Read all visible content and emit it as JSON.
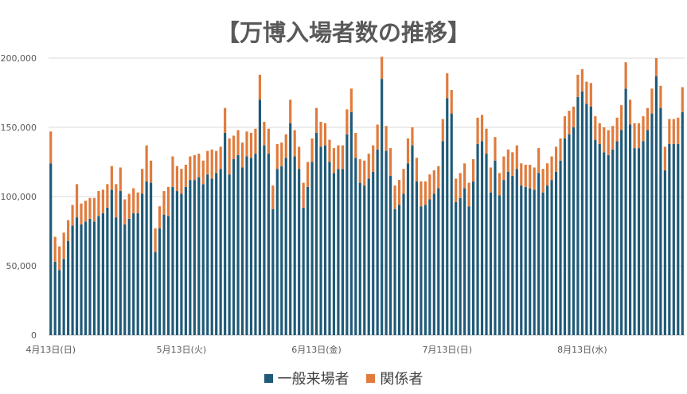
{
  "chart_data": {
    "type": "bar",
    "stacked": true,
    "title": "【万博入場者数の推移】",
    "y_ticks": [
      "0",
      "50,000",
      "100,000",
      "150,000",
      "200,000"
    ],
    "ylim": [
      0,
      200000
    ],
    "gridlines": true,
    "legend_position": "bottom",
    "x_tick_labels": [
      {
        "index": 0,
        "label": "4月13日(日)"
      },
      {
        "index": 30,
        "label": "5月13日(火)"
      },
      {
        "index": 61,
        "label": "6月13日(金)"
      },
      {
        "index": 91,
        "label": "7月13日(日)"
      },
      {
        "index": 122,
        "label": "8月13日(水)"
      }
    ],
    "colors": {
      "general": "#1f5a78",
      "staff": "#e07b3c"
    },
    "series": [
      {
        "name": "一般来場者",
        "values": [
          124000,
          53000,
          47000,
          55000,
          68000,
          79000,
          85000,
          80000,
          82000,
          84000,
          82000,
          86000,
          88000,
          92000,
          105000,
          85000,
          104000,
          80000,
          84000,
          88000,
          88000,
          102000,
          111000,
          110000,
          60000,
          77000,
          87000,
          86000,
          107000,
          104000,
          102000,
          107000,
          112000,
          112000,
          114000,
          109000,
          116000,
          113000,
          117000,
          120000,
          146000,
          116000,
          127000,
          130000,
          121000,
          129000,
          128000,
          131000,
          170000,
          137000,
          131000,
          91000,
          120000,
          122000,
          128000,
          153000,
          129000,
          120000,
          92000,
          107000,
          125000,
          146000,
          136000,
          137000,
          125000,
          117000,
          120000,
          120000,
          145000,
          161000,
          128000,
          110000,
          108000,
          113000,
          118000,
          134000,
          185000,
          133000,
          115000,
          91000,
          94000,
          102000,
          124000,
          137000,
          111000,
          93000,
          94000,
          98000,
          102000,
          106000,
          140000,
          171000,
          160000,
          96000,
          99000,
          106000,
          93000,
          111000,
          138000,
          140000,
          131000,
          103000,
          126000,
          101000,
          112000,
          118000,
          115000,
          120000,
          108000,
          107000,
          106000,
          105000,
          117000,
          103000,
          108000,
          112000,
          118000,
          126000,
          142000,
          145000,
          150000,
          172000,
          176000,
          167000,
          165000,
          141000,
          138000,
          132000,
          130000,
          134000,
          140000,
          148000,
          178000,
          152000,
          135000,
          135000,
          140000,
          148000,
          160000,
          187000,
          164000,
          119000,
          138000,
          138000,
          138000,
          161000
        ],
        "values_staff": [
          23000,
          18000,
          17000,
          19000,
          15000,
          15000,
          24000,
          15000,
          15000,
          15000,
          17000,
          18000,
          17000,
          17000,
          17000,
          24000,
          17000,
          18000,
          18000,
          18000,
          15000,
          18000,
          26000,
          16000,
          17000,
          16000,
          17000,
          21000,
          22000,
          18000,
          18000,
          16000,
          17000,
          18000,
          17000,
          17000,
          17000,
          21000,
          16000,
          16000,
          18000,
          26000,
          17000,
          18000,
          18000,
          18000,
          18000,
          18000,
          18000,
          17000,
          18000,
          17000,
          18000,
          17000,
          17000,
          17000,
          19000,
          16000,
          18000,
          18000,
          17000,
          18000,
          18000,
          16000,
          16000,
          18000,
          17000,
          17000,
          18000,
          17000,
          18000,
          17000,
          18000,
          18000,
          19000,
          18000,
          16000,
          18000,
          20000,
          17000,
          18000,
          18000,
          18000,
          13000,
          17000,
          18000,
          17000,
          18000,
          17000,
          16000,
          16000,
          18000,
          17000,
          17000,
          18000,
          18000,
          17000,
          16000,
          19000,
          19000,
          18000,
          18000,
          17000,
          16000,
          17000,
          16000,
          17000,
          17000,
          16000,
          16000,
          17000,
          16000,
          18000,
          17000,
          16000,
          17000,
          18000,
          16000,
          16000,
          17000,
          15000,
          16000,
          16000,
          16000,
          17000,
          17000,
          15000,
          18000,
          18000,
          17000,
          17000,
          18000,
          19000,
          18000,
          18000,
          18000,
          18000,
          16000,
          18000,
          13000,
          16000,
          17000,
          18000,
          18000,
          19000,
          18000
        ]
      },
      {
        "name": "関係者"
      }
    ]
  }
}
